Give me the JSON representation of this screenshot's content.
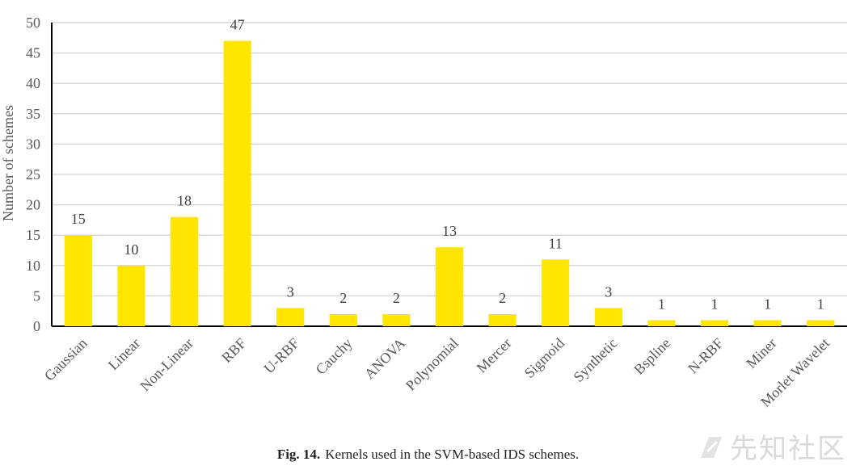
{
  "chart_data": {
    "type": "bar",
    "categories": [
      "Gaussian",
      "Linear",
      "Non-Linear",
      "RBF",
      "U-RBF",
      "Cauchy",
      "ANOVA",
      "Polynomial",
      "Mercer",
      "Sigmoid",
      "Synthetic",
      "Bspline",
      "N-RBF",
      "Miner",
      "Morlet Wavelet"
    ],
    "values": [
      15,
      10,
      18,
      47,
      3,
      2,
      2,
      13,
      2,
      11,
      3,
      1,
      1,
      1,
      1
    ],
    "ylabel": "Number of schemes",
    "xlabel": "",
    "ylim": [
      0,
      50
    ],
    "yticks": [
      0,
      5,
      10,
      15,
      20,
      25,
      30,
      35,
      40,
      45,
      50
    ],
    "grid": true,
    "bar_color": "#FFE600"
  },
  "caption": {
    "label": "Fig. 14.",
    "text": "Kernels used in the SVM-based IDS schemes."
  },
  "watermark": {
    "text": "先知社区"
  }
}
